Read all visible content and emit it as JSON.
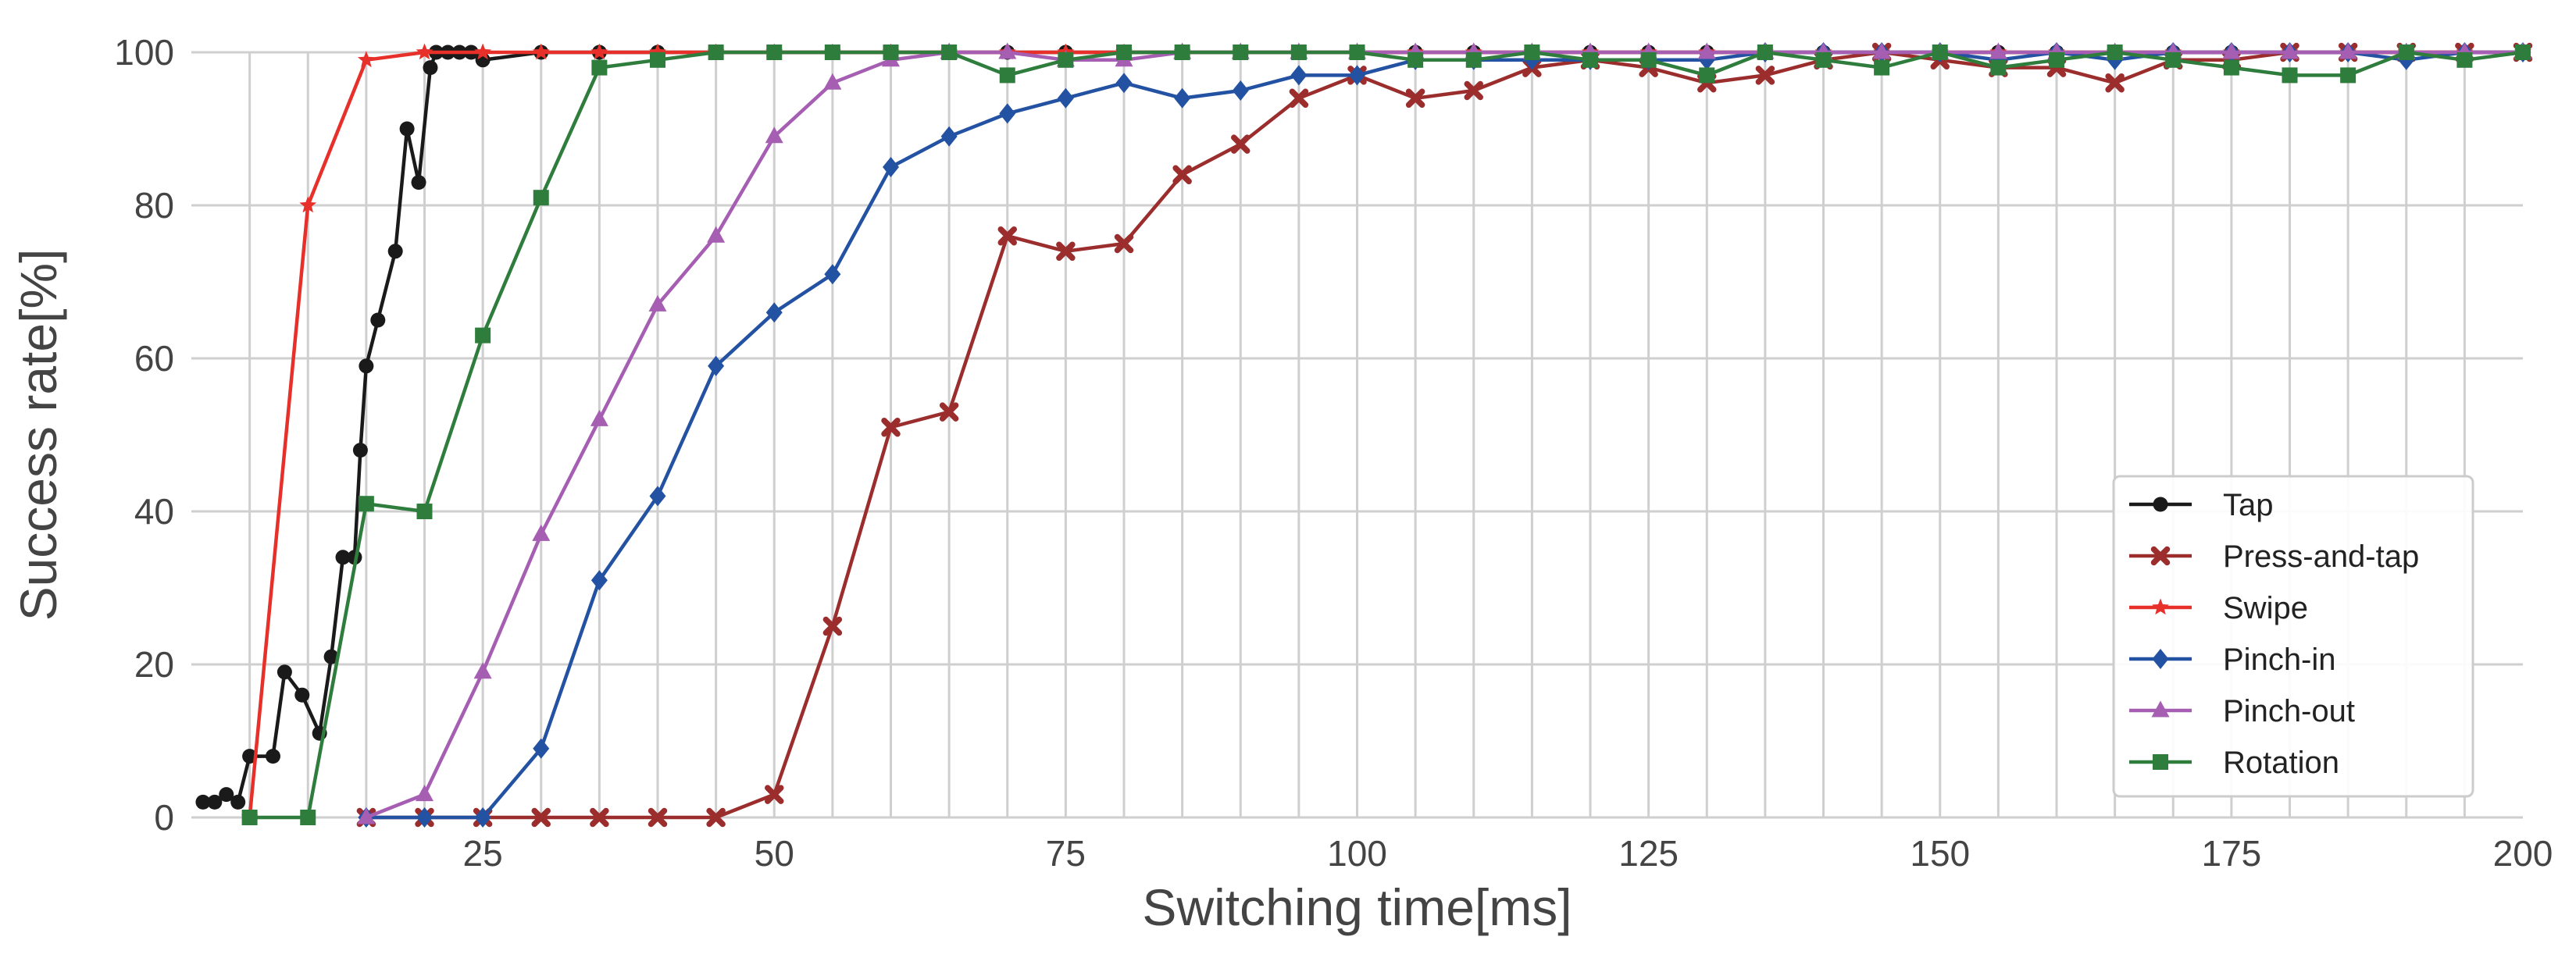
{
  "chart_data": {
    "type": "line",
    "title": "",
    "xlabel": "Switching time[ms]",
    "ylabel": "Success rate[%]",
    "xlim": [
      0,
      200
    ],
    "ylim": [
      0,
      100
    ],
    "x_ticks": [
      25,
      50,
      75,
      100,
      125,
      150,
      175,
      200
    ],
    "y_ticks": [
      0,
      20,
      40,
      60,
      80,
      100
    ],
    "grid": true,
    "legend_position": "lower-right",
    "series": [
      {
        "name": "Tap",
        "color": "#1a1a1a",
        "marker": "circle",
        "points": [
          [
            1,
            2
          ],
          [
            2,
            2
          ],
          [
            3,
            3
          ],
          [
            4,
            2
          ],
          [
            5,
            8
          ],
          [
            7,
            8
          ],
          [
            8,
            19
          ],
          [
            9.5,
            16
          ],
          [
            11,
            11
          ],
          [
            12,
            21
          ],
          [
            13,
            34
          ],
          [
            14,
            34
          ],
          [
            14.5,
            48
          ],
          [
            15,
            59
          ],
          [
            16,
            65
          ],
          [
            17.5,
            74
          ],
          [
            18.5,
            90
          ],
          [
            19.5,
            83
          ],
          [
            20.5,
            98
          ],
          [
            21,
            100
          ],
          [
            22,
            100
          ],
          [
            23,
            100
          ],
          [
            24,
            100
          ],
          [
            25,
            99
          ],
          [
            30,
            100
          ],
          [
            35,
            100
          ],
          [
            40,
            100
          ],
          [
            45,
            100
          ],
          [
            50,
            100
          ],
          [
            55,
            100
          ],
          [
            60,
            100
          ],
          [
            65,
            100
          ],
          [
            70,
            100
          ],
          [
            75,
            100
          ],
          [
            80,
            100
          ],
          [
            85,
            100
          ],
          [
            90,
            100
          ],
          [
            95,
            100
          ],
          [
            100,
            100
          ],
          [
            105,
            100
          ],
          [
            110,
            100
          ],
          [
            115,
            100
          ],
          [
            120,
            100
          ],
          [
            125,
            100
          ],
          [
            130,
            100
          ],
          [
            135,
            100
          ],
          [
            140,
            100
          ],
          [
            145,
            100
          ],
          [
            150,
            100
          ],
          [
            155,
            100
          ],
          [
            160,
            100
          ],
          [
            165,
            100
          ],
          [
            170,
            100
          ],
          [
            175,
            100
          ],
          [
            180,
            100
          ],
          [
            185,
            100
          ],
          [
            190,
            100
          ],
          [
            195,
            100
          ],
          [
            200,
            100
          ]
        ]
      },
      {
        "name": "Press-and-tap",
        "color": "#9b2d2d",
        "marker": "x",
        "points": [
          [
            15,
            0
          ],
          [
            20,
            0
          ],
          [
            25,
            0
          ],
          [
            30,
            0
          ],
          [
            35,
            0
          ],
          [
            40,
            0
          ],
          [
            45,
            0
          ],
          [
            50,
            3
          ],
          [
            55,
            25
          ],
          [
            60,
            51
          ],
          [
            65,
            53
          ],
          [
            70,
            76
          ],
          [
            75,
            74
          ],
          [
            80,
            75
          ],
          [
            85,
            84
          ],
          [
            90,
            88
          ],
          [
            95,
            94
          ],
          [
            100,
            97
          ],
          [
            105,
            94
          ],
          [
            110,
            95
          ],
          [
            115,
            98
          ],
          [
            120,
            99
          ],
          [
            125,
            98
          ],
          [
            130,
            96
          ],
          [
            135,
            97
          ],
          [
            140,
            99
          ],
          [
            145,
            100
          ],
          [
            150,
            99
          ],
          [
            155,
            98
          ],
          [
            160,
            98
          ],
          [
            165,
            96
          ],
          [
            170,
            99
          ],
          [
            175,
            99
          ],
          [
            180,
            100
          ],
          [
            185,
            100
          ],
          [
            190,
            100
          ],
          [
            195,
            100
          ],
          [
            200,
            100
          ]
        ]
      },
      {
        "name": "Swipe",
        "color": "#e8302a",
        "marker": "star",
        "points": [
          [
            5,
            0
          ],
          [
            10,
            80
          ],
          [
            15,
            99
          ],
          [
            20,
            100
          ],
          [
            25,
            100
          ],
          [
            30,
            100
          ],
          [
            35,
            100
          ],
          [
            40,
            100
          ],
          [
            45,
            100
          ],
          [
            50,
            100
          ],
          [
            55,
            100
          ],
          [
            60,
            100
          ],
          [
            65,
            100
          ],
          [
            70,
            100
          ],
          [
            75,
            100
          ],
          [
            80,
            100
          ],
          [
            85,
            100
          ],
          [
            90,
            100
          ],
          [
            95,
            100
          ],
          [
            100,
            100
          ],
          [
            105,
            100
          ],
          [
            110,
            100
          ],
          [
            115,
            100
          ],
          [
            120,
            100
          ],
          [
            125,
            100
          ],
          [
            130,
            100
          ],
          [
            135,
            100
          ],
          [
            140,
            100
          ],
          [
            145,
            100
          ],
          [
            150,
            100
          ],
          [
            155,
            100
          ],
          [
            160,
            100
          ],
          [
            165,
            100
          ],
          [
            170,
            100
          ],
          [
            175,
            100
          ],
          [
            180,
            100
          ],
          [
            185,
            100
          ],
          [
            190,
            100
          ],
          [
            195,
            100
          ],
          [
            200,
            100
          ]
        ]
      },
      {
        "name": "Pinch-in",
        "color": "#2352a3",
        "marker": "diamond",
        "points": [
          [
            15,
            0
          ],
          [
            20,
            0
          ],
          [
            25,
            0
          ],
          [
            30,
            9
          ],
          [
            35,
            31
          ],
          [
            40,
            42
          ],
          [
            45,
            59
          ],
          [
            50,
            66
          ],
          [
            55,
            71
          ],
          [
            60,
            85
          ],
          [
            65,
            89
          ],
          [
            70,
            92
          ],
          [
            75,
            94
          ],
          [
            80,
            96
          ],
          [
            85,
            94
          ],
          [
            90,
            95
          ],
          [
            95,
            97
          ],
          [
            100,
            97
          ],
          [
            105,
            99
          ],
          [
            110,
            99
          ],
          [
            115,
            99
          ],
          [
            120,
            99
          ],
          [
            125,
            99
          ],
          [
            130,
            99
          ],
          [
            135,
            100
          ],
          [
            140,
            100
          ],
          [
            145,
            100
          ],
          [
            150,
            100
          ],
          [
            155,
            99
          ],
          [
            160,
            100
          ],
          [
            165,
            99
          ],
          [
            170,
            100
          ],
          [
            175,
            100
          ],
          [
            180,
            100
          ],
          [
            185,
            100
          ],
          [
            190,
            99
          ],
          [
            195,
            100
          ],
          [
            200,
            100
          ]
        ]
      },
      {
        "name": "Pinch-out",
        "color": "#a65eb3",
        "marker": "triangle",
        "points": [
          [
            15,
            0
          ],
          [
            20,
            3
          ],
          [
            25,
            19
          ],
          [
            30,
            37
          ],
          [
            35,
            52
          ],
          [
            40,
            67
          ],
          [
            45,
            76
          ],
          [
            50,
            89
          ],
          [
            55,
            96
          ],
          [
            60,
            99
          ],
          [
            65,
            100
          ],
          [
            70,
            100
          ],
          [
            75,
            99
          ],
          [
            80,
            99
          ],
          [
            85,
            100
          ],
          [
            90,
            100
          ],
          [
            95,
            100
          ],
          [
            100,
            100
          ],
          [
            105,
            100
          ],
          [
            110,
            100
          ],
          [
            115,
            100
          ],
          [
            120,
            100
          ],
          [
            125,
            100
          ],
          [
            130,
            100
          ],
          [
            135,
            100
          ],
          [
            140,
            100
          ],
          [
            145,
            100
          ],
          [
            150,
            100
          ],
          [
            155,
            100
          ],
          [
            160,
            100
          ],
          [
            165,
            100
          ],
          [
            170,
            100
          ],
          [
            175,
            100
          ],
          [
            180,
            100
          ],
          [
            185,
            100
          ],
          [
            190,
            100
          ],
          [
            195,
            100
          ],
          [
            200,
            100
          ]
        ]
      },
      {
        "name": "Rotation",
        "color": "#2e7d3c",
        "marker": "square",
        "points": [
          [
            5,
            0
          ],
          [
            10,
            0
          ],
          [
            15,
            41
          ],
          [
            20,
            40
          ],
          [
            25,
            63
          ],
          [
            30,
            81
          ],
          [
            35,
            98
          ],
          [
            40,
            99
          ],
          [
            45,
            100
          ],
          [
            50,
            100
          ],
          [
            55,
            100
          ],
          [
            60,
            100
          ],
          [
            65,
            100
          ],
          [
            70,
            97
          ],
          [
            75,
            99
          ],
          [
            80,
            100
          ],
          [
            85,
            100
          ],
          [
            90,
            100
          ],
          [
            95,
            100
          ],
          [
            100,
            100
          ],
          [
            105,
            99
          ],
          [
            110,
            99
          ],
          [
            115,
            100
          ],
          [
            120,
            99
          ],
          [
            125,
            99
          ],
          [
            130,
            97
          ],
          [
            135,
            100
          ],
          [
            140,
            99
          ],
          [
            145,
            98
          ],
          [
            150,
            100
          ],
          [
            155,
            98
          ],
          [
            160,
            99
          ],
          [
            165,
            100
          ],
          [
            170,
            99
          ],
          [
            175,
            98
          ],
          [
            180,
            97
          ],
          [
            185,
            97
          ],
          [
            190,
            100
          ],
          [
            195,
            99
          ],
          [
            200,
            100
          ]
        ]
      }
    ]
  }
}
